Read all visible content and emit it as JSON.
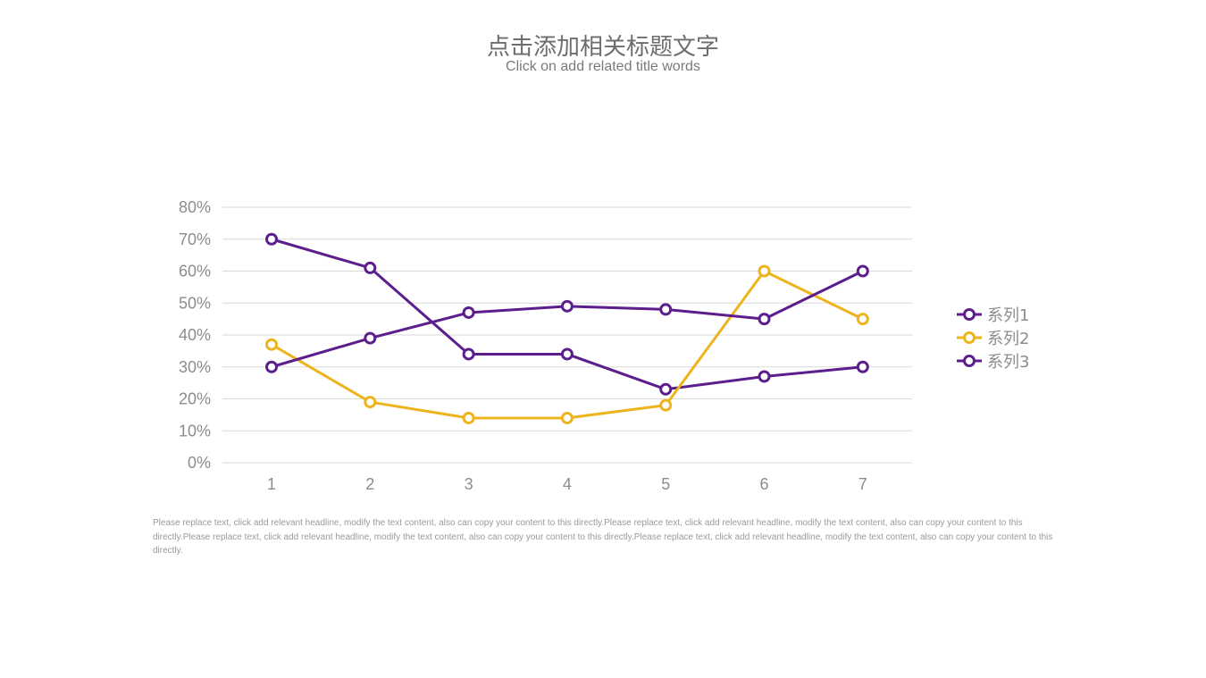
{
  "header": {
    "title": "点击添加相关标题文字",
    "subtitle": "Click on add related title words"
  },
  "body_text": "Please replace text, click add relevant headline, modify the text content, also can copy your content to this directly.Please replace text, click add relevant headline, modify the text content, also can copy your content to this directly.Please replace text, click add relevant headline, modify the text content, also can copy your content to this directly.Please replace text, click add relevant headline, modify the text content, also can copy your content to this directly.",
  "chart_data": {
    "type": "line",
    "categories": [
      "1",
      "2",
      "3",
      "4",
      "5",
      "6",
      "7"
    ],
    "y_ticks": [
      "0%",
      "10%",
      "20%",
      "30%",
      "40%",
      "50%",
      "60%",
      "70%",
      "80%"
    ],
    "ylim": [
      0,
      80
    ],
    "y_unit": "%",
    "grid": true,
    "legend_position": "right",
    "series": [
      {
        "name": "系列1",
        "color": "#5b1e8c",
        "values": [
          70,
          61,
          34,
          34,
          23,
          27,
          30
        ]
      },
      {
        "name": "系列2",
        "color": "#edb41e",
        "values": [
          37,
          19,
          14,
          14,
          18,
          60,
          45
        ]
      },
      {
        "name": "系列3",
        "color": "#5b1e8c",
        "values": [
          30,
          39,
          47,
          49,
          48,
          45,
          60
        ]
      }
    ]
  }
}
